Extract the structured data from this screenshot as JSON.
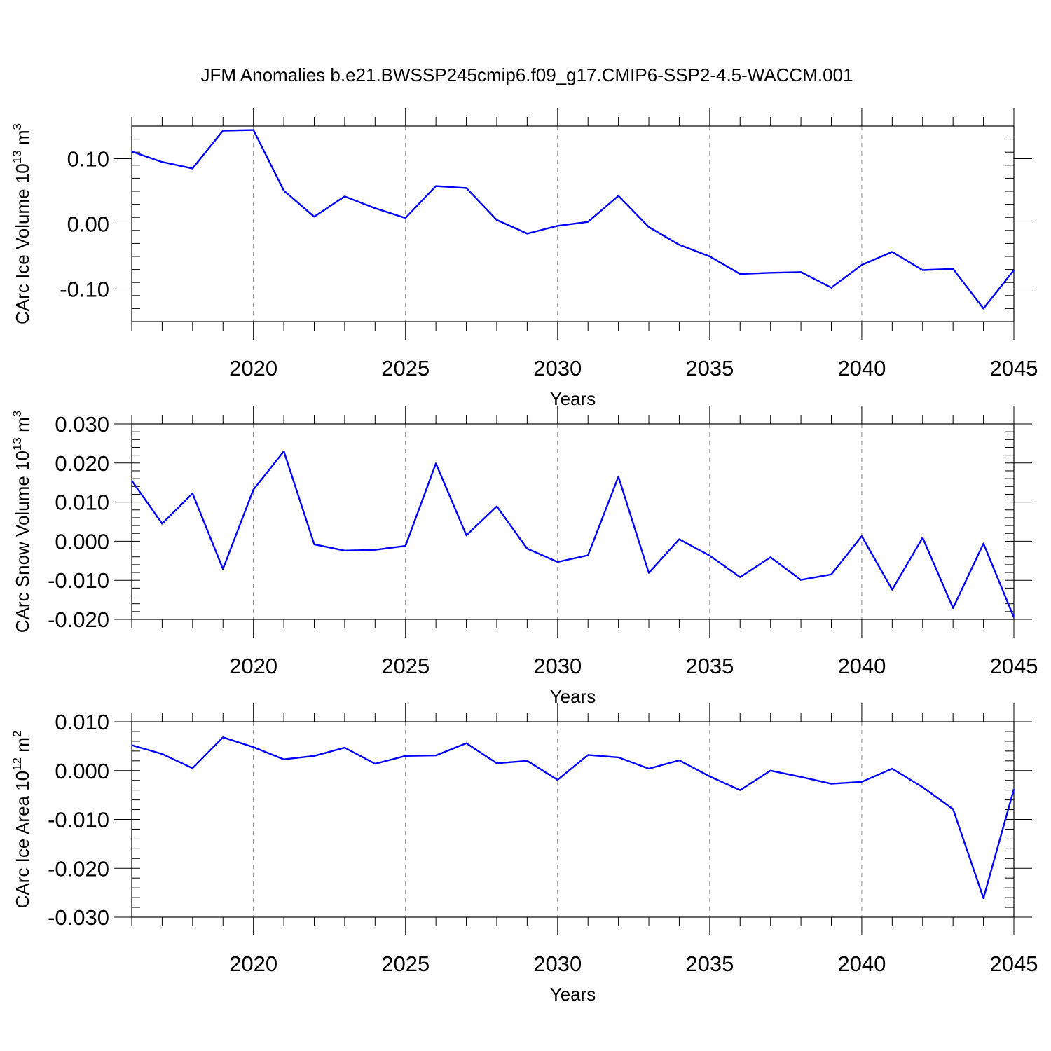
{
  "title": "JFM Anomalies b.e21.BWSSP245cmip6.f09_g17.CMIP6-SSP2-4.5-WACCM.001",
  "line_color": "#0000ff",
  "grid_color": "#888888",
  "chart_data": [
    {
      "type": "line",
      "ylabel": "CArc Ice Volume 10",
      "ylabel_exp": "13",
      "ylabel_unit": " m",
      "ylabel_unit_exp": "3",
      "xlabel": "Years",
      "xlim": [
        2016,
        2045
      ],
      "ylim": [
        -0.15,
        0.15
      ],
      "xticks": [
        2020,
        2025,
        2030,
        2035,
        2040,
        2045
      ],
      "xtick_labels": [
        "2020",
        "2025",
        "2030",
        "2035",
        "2040",
        "2045"
      ],
      "yticks": [
        -0.1,
        0.0,
        0.1
      ],
      "ytick_labels": [
        "-0.10",
        "0.00",
        "0.10"
      ],
      "yminor_step": 0.02,
      "grid": "vertical dashed at major x ticks",
      "x": [
        2016,
        2017,
        2018,
        2019,
        2020,
        2021,
        2022,
        2023,
        2024,
        2025,
        2026,
        2027,
        2028,
        2029,
        2030,
        2031,
        2032,
        2033,
        2034,
        2035,
        2036,
        2037,
        2038,
        2039,
        2040,
        2041,
        2042,
        2043,
        2044,
        2045
      ],
      "y": [
        0.111,
        0.095,
        0.085,
        0.143,
        0.144,
        0.051,
        0.011,
        0.042,
        0.024,
        0.009,
        0.058,
        0.055,
        0.006,
        -0.015,
        -0.003,
        0.003,
        0.043,
        -0.005,
        -0.032,
        -0.05,
        -0.077,
        -0.075,
        -0.074,
        -0.098,
        -0.063,
        -0.043,
        -0.071,
        -0.069,
        -0.13,
        -0.071
      ]
    },
    {
      "type": "line",
      "ylabel": "CArc Snow Volume 10",
      "ylabel_exp": "13",
      "ylabel_unit": " m",
      "ylabel_unit_exp": "3",
      "xlabel": "Years",
      "xlim": [
        2016,
        2045
      ],
      "ylim": [
        -0.02,
        0.03
      ],
      "xticks": [
        2020,
        2025,
        2030,
        2035,
        2040,
        2045
      ],
      "xtick_labels": [
        "2020",
        "2025",
        "2030",
        "2035",
        "2040",
        "2045"
      ],
      "yticks": [
        -0.02,
        -0.01,
        0.0,
        0.01,
        0.02,
        0.03
      ],
      "ytick_labels": [
        "-0.020",
        "-0.010",
        "0.000",
        "0.010",
        "0.020",
        "0.030"
      ],
      "yminor_step": 0.002,
      "grid": "vertical dashed at major x ticks",
      "x": [
        2016,
        2017,
        2018,
        2019,
        2020,
        2021,
        2022,
        2023,
        2024,
        2025,
        2026,
        2027,
        2028,
        2029,
        2030,
        2031,
        2032,
        2033,
        2034,
        2035,
        2036,
        2037,
        2038,
        2039,
        2040,
        2041,
        2042,
        2043,
        2044,
        2045
      ],
      "y": [
        0.0155,
        0.0045,
        0.0122,
        -0.0071,
        0.0132,
        0.023,
        -0.0008,
        -0.0024,
        -0.0022,
        -0.0012,
        0.0199,
        0.0015,
        0.0089,
        -0.0019,
        -0.0053,
        -0.0036,
        0.0165,
        -0.0081,
        0.0005,
        -0.0037,
        -0.0092,
        -0.0041,
        -0.0099,
        -0.0085,
        0.0013,
        -0.0124,
        0.0009,
        -0.0171,
        -0.0006,
        -0.0195
      ]
    },
    {
      "type": "line",
      "ylabel": "CArc Ice Area 10",
      "ylabel_exp": "12",
      "ylabel_unit": " m",
      "ylabel_unit_exp": "2",
      "xlabel": "Years",
      "xlim": [
        2016,
        2045
      ],
      "ylim": [
        -0.03,
        0.01
      ],
      "xticks": [
        2020,
        2025,
        2030,
        2035,
        2040,
        2045
      ],
      "xtick_labels": [
        "2020",
        "2025",
        "2030",
        "2035",
        "2040",
        "2045"
      ],
      "yticks": [
        -0.03,
        -0.02,
        -0.01,
        0.0,
        0.01
      ],
      "ytick_labels": [
        "-0.030",
        "-0.020",
        "-0.010",
        "0.000",
        "0.010"
      ],
      "yminor_step": 0.002,
      "grid": "vertical dashed at major x ticks",
      "x": [
        2016,
        2017,
        2018,
        2019,
        2020,
        2021,
        2022,
        2023,
        2024,
        2025,
        2026,
        2027,
        2028,
        2029,
        2030,
        2031,
        2032,
        2033,
        2034,
        2035,
        2036,
        2037,
        2038,
        2039,
        2040,
        2041,
        2042,
        2043,
        2044,
        2045
      ],
      "y": [
        0.0052,
        0.0034,
        0.0005,
        0.0068,
        0.0048,
        0.0023,
        0.003,
        0.0047,
        0.0014,
        0.003,
        0.0031,
        0.0056,
        0.0015,
        0.002,
        -0.0019,
        0.0032,
        0.0027,
        0.0004,
        0.0021,
        -0.0012,
        -0.004,
        0.0,
        -0.0013,
        -0.0027,
        -0.0023,
        0.0004,
        -0.0034,
        -0.0079,
        -0.0261,
        -0.0038
      ]
    }
  ]
}
